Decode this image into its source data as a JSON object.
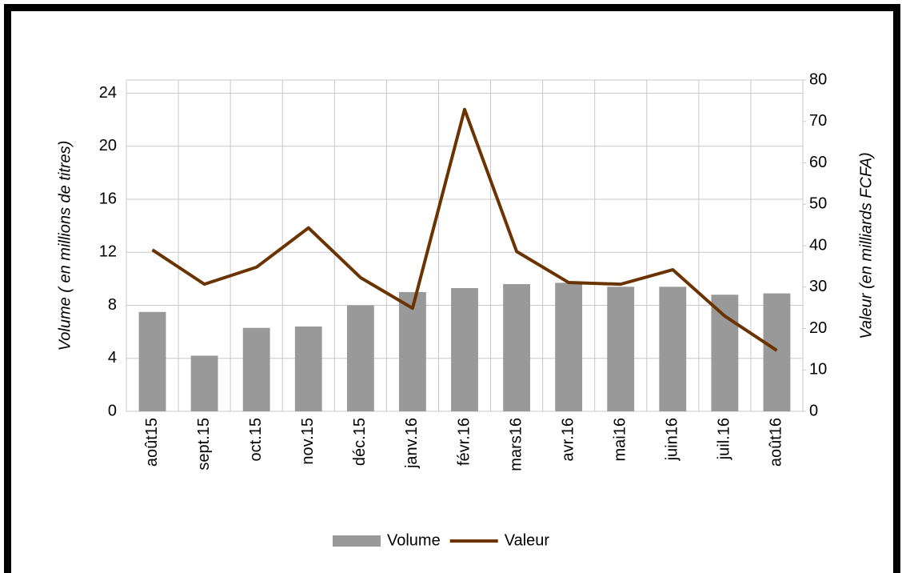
{
  "chart_data": {
    "type": "bar_line",
    "y_label": "Volume ( en millions de titres)",
    "y2_label": "Valeur (en milliards FCFA)",
    "categories": [
      "août15",
      "sept.15",
      "oct.15",
      "nov.15",
      "déc.15",
      "janv.16",
      "févr.16",
      "mars16",
      "avr.16",
      "mai16",
      "juin16",
      "juil.16",
      "août16"
    ],
    "series": [
      {
        "name": "Volume",
        "type": "bar",
        "color": "#999999",
        "values": [
          7.5,
          4.2,
          6.3,
          6.4,
          8.0,
          9.0,
          9.3,
          9.6,
          9.7,
          9.4,
          9.4,
          8.8,
          8.9
        ]
      },
      {
        "name": "Valeur",
        "type": "line",
        "axis": "y2",
        "color": "#6b3300",
        "values": [
          39.0,
          30.7,
          34.8,
          44.3,
          32.3,
          24.9,
          72.9,
          38.6,
          31.1,
          30.7,
          34.2,
          23.0,
          14.7
        ]
      }
    ],
    "ylim": [
      0,
      25
    ],
    "yticks": [
      0,
      4,
      8,
      12,
      16,
      20,
      24
    ],
    "y2lim": [
      0,
      80
    ],
    "y2ticks": [
      0,
      10,
      20,
      30,
      40,
      50,
      60,
      70,
      80
    ],
    "grid": true,
    "legend": "bottom"
  }
}
